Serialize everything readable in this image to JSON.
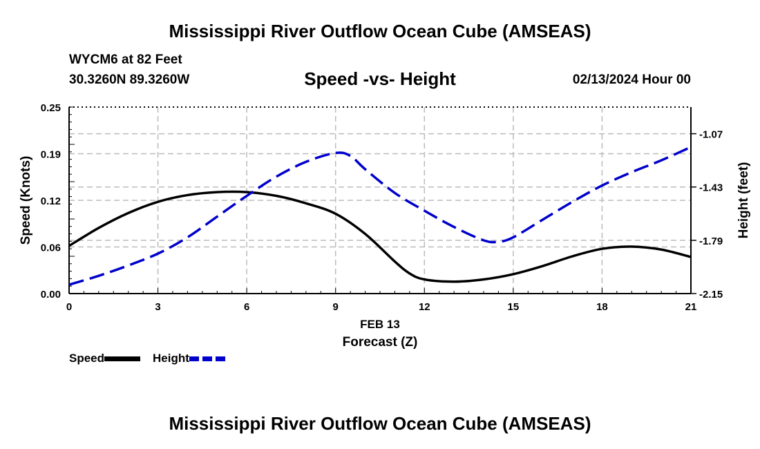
{
  "header": {
    "title": "Mississippi River Outflow Ocean Cube (AMSEAS)",
    "station": "WYCM6 at 82 Feet",
    "coords": "30.3260N  89.3260W",
    "chart_title": "Speed -vs- Height",
    "datetime": "02/13/2024 Hour 00"
  },
  "footer": {
    "title": "Mississippi River Outflow Ocean Cube (AMSEAS)"
  },
  "legend": {
    "speed": "Speed",
    "height": "Height"
  },
  "colors": {
    "speed": "#000000",
    "height": "#0000cc",
    "grid": "#bbbbbb"
  },
  "chart_data": {
    "type": "line",
    "title": "Speed -vs- Height",
    "xlabel": "Forecast (Z)",
    "xlabel_date": "FEB 13",
    "ylabel": "Speed (Knots)",
    "y2label": "Height (feet)",
    "xlim": [
      0,
      21
    ],
    "ylim": [
      0,
      0.25
    ],
    "y2lim": [
      -2.15,
      -0.89
    ],
    "x_ticks": [
      0,
      3,
      6,
      9,
      12,
      15,
      18,
      21
    ],
    "x_tick_labels": [
      "0",
      "3",
      "6",
      "9",
      "12",
      "15",
      "18",
      "21"
    ],
    "y_ticks": [
      0,
      0.0625,
      0.125,
      0.1875,
      0.25
    ],
    "y_tick_labels": [
      "0.00",
      "0.06",
      "0.12",
      "0.19",
      "0.25"
    ],
    "y2_ticks": [
      -2.15,
      -1.79,
      -1.43,
      -1.07
    ],
    "y2_tick_labels": [
      "-2.15",
      "-1.79",
      "-1.43",
      "-1.07"
    ],
    "grid": true,
    "series": [
      {
        "name": "Speed",
        "axis": "left",
        "x": [
          0,
          1,
          2,
          3,
          4,
          5,
          6,
          7,
          8,
          9,
          10,
          11,
          11.5,
          12,
          13,
          14,
          15,
          16,
          17,
          18,
          19,
          20,
          21
        ],
        "values": [
          0.064,
          0.088,
          0.108,
          0.123,
          0.132,
          0.136,
          0.136,
          0.131,
          0.121,
          0.107,
          0.08,
          0.043,
          0.027,
          0.019,
          0.016,
          0.019,
          0.026,
          0.037,
          0.05,
          0.06,
          0.063,
          0.059,
          0.049
        ]
      },
      {
        "name": "Height",
        "axis": "right",
        "x": [
          0,
          1,
          2,
          3,
          4,
          5,
          6,
          7,
          8,
          9,
          9.5,
          10,
          11,
          12,
          13,
          14,
          14.5,
          15,
          16,
          17,
          18,
          19,
          20,
          21
        ],
        "values": [
          -2.09,
          -2.03,
          -1.96,
          -1.88,
          -1.77,
          -1.63,
          -1.49,
          -1.36,
          -1.26,
          -1.2,
          -1.22,
          -1.31,
          -1.47,
          -1.59,
          -1.7,
          -1.79,
          -1.8,
          -1.77,
          -1.65,
          -1.53,
          -1.42,
          -1.33,
          -1.25,
          -1.16
        ]
      }
    ]
  }
}
